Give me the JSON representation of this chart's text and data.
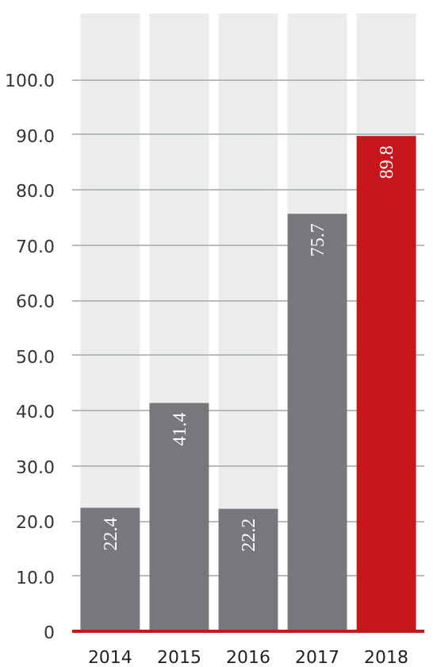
{
  "chart_data": {
    "type": "bar",
    "categories": [
      "2014",
      "2015",
      "2016",
      "2017",
      "2018"
    ],
    "values": [
      22.4,
      41.4,
      22.2,
      75.7,
      89.8
    ],
    "colors": [
      "#77787b",
      "#77787b",
      "#77787b",
      "#77787b",
      "#c8161d"
    ],
    "ylim": [
      0,
      112
    ],
    "yticks": [
      0,
      {
        "value": 10,
        "label": "10.0"
      },
      {
        "value": 20,
        "label": "20.0"
      },
      {
        "value": 30,
        "label": "30.0"
      },
      {
        "value": 40,
        "label": "40.0"
      },
      {
        "value": 50,
        "label": "50.0"
      },
      {
        "value": 60,
        "label": "60.0"
      },
      {
        "value": 70,
        "label": "70.0"
      },
      {
        "value": 80,
        "label": "80.0"
      },
      {
        "value": 90,
        "label": "90.0"
      },
      {
        "value": 100,
        "label": "100.0"
      }
    ],
    "bands": [
      {
        "axis": "x",
        "from": "2014",
        "to": "2014",
        "color": "#ebecec"
      },
      {
        "axis": "x",
        "from": "2015",
        "to": "2015",
        "color": "#ebecec"
      },
      {
        "axis": "x",
        "from": "2016",
        "to": "2016",
        "color": "#ebecec"
      },
      {
        "axis": "x",
        "from": "2017",
        "to": "2017",
        "color": "#ebecec"
      },
      {
        "axis": "x",
        "from": "2018",
        "to": "2018",
        "color": "#ebecec"
      }
    ],
    "grid": "y",
    "data_labels": true
  }
}
